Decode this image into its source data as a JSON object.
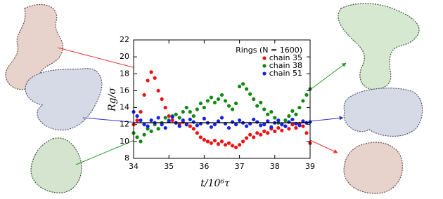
{
  "chart_data": {
    "type": "scatter",
    "xlabel": "t/10⁶τ",
    "ylabel": "Rg/σ",
    "legend_title": "Rings (N = 1600)",
    "legend": "upper right",
    "xlim": [
      34,
      39
    ],
    "xticks": [
      34,
      35,
      36,
      37,
      38,
      39
    ],
    "ylim": [
      8,
      22
    ],
    "yticks": [
      8,
      10,
      12,
      14,
      16,
      18,
      20,
      22
    ],
    "reference_line": 12.2,
    "x": [
      34.0,
      34.1,
      34.2,
      34.3,
      34.4,
      34.5,
      34.6,
      34.7,
      34.8,
      34.9,
      35.0,
      35.1,
      35.2,
      35.3,
      35.4,
      35.5,
      35.6,
      35.7,
      35.8,
      35.9,
      36.0,
      36.1,
      36.2,
      36.3,
      36.4,
      36.5,
      36.6,
      36.7,
      36.8,
      36.9,
      37.0,
      37.1,
      37.2,
      37.3,
      37.4,
      37.5,
      37.6,
      37.7,
      37.8,
      37.9,
      38.0,
      38.1,
      38.2,
      38.3,
      38.4,
      38.5,
      38.6,
      38.7,
      38.8,
      38.9,
      39.0
    ],
    "series": [
      {
        "name": "chain 35",
        "color": "#ee1111",
        "values": [
          12.0,
          12.5,
          13.5,
          15.5,
          17.2,
          18.2,
          17.5,
          16.0,
          15.0,
          14.0,
          13.0,
          12.5,
          12.2,
          12.0,
          12.3,
          12.0,
          11.8,
          11.5,
          11.0,
          10.5,
          10.2,
          10.0,
          9.8,
          10.1,
          9.7,
          10.0,
          9.6,
          9.8,
          9.5,
          9.3,
          9.6,
          10.0,
          10.4,
          10.8,
          10.5,
          11.0,
          10.8,
          11.2,
          11.0,
          11.5,
          11.2,
          11.6,
          11.3,
          11.8,
          11.5,
          12.0,
          11.6,
          12.1,
          11.8,
          11.0,
          9.8
        ]
      },
      {
        "name": "chain 38",
        "color": "#118811",
        "values": [
          11.0,
          10.5,
          10.0,
          10.8,
          11.5,
          11.2,
          12.0,
          11.5,
          12.2,
          12.8,
          12.5,
          13.0,
          13.2,
          12.8,
          13.5,
          14.0,
          13.5,
          13.0,
          13.8,
          14.5,
          14.0,
          14.8,
          15.2,
          14.6,
          15.0,
          15.5,
          14.8,
          14.2,
          13.8,
          14.5,
          16.5,
          16.8,
          16.2,
          15.6,
          15.0,
          14.2,
          14.6,
          13.8,
          13.2,
          13.5,
          12.8,
          12.2,
          12.0,
          12.5,
          13.0,
          13.6,
          13.2,
          14.0,
          14.8,
          15.5,
          16.2
        ]
      },
      {
        "name": "chain 51",
        "color": "#1122ee",
        "values": [
          13.5,
          13.0,
          12.5,
          12.0,
          11.8,
          12.5,
          12.2,
          12.8,
          12.0,
          11.6,
          12.4,
          12.9,
          12.2,
          11.8,
          12.5,
          12.0,
          12.6,
          12.3,
          11.9,
          12.1,
          12.7,
          12.2,
          11.7,
          12.0,
          12.4,
          12.8,
          12.1,
          11.6,
          12.3,
          12.0,
          12.5,
          12.2,
          11.8,
          12.1,
          12.6,
          12.3,
          11.9,
          12.0,
          12.4,
          11.7,
          12.2,
          12.5,
          12.0,
          11.8,
          12.3,
          12.6,
          12.1,
          11.9,
          12.4,
          12.2,
          12.3
        ]
      }
    ]
  }
}
